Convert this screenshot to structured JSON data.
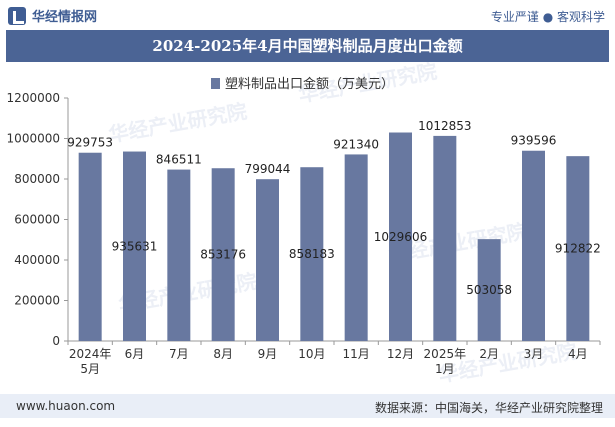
{
  "header": {
    "brand": "华经情报网",
    "tagline": "专业严谨 ● 客观科学"
  },
  "title": "2024-2025年4月中国塑料制品月度出口金额",
  "footer": {
    "url": "www.huaon.com",
    "source": "数据来源：中国海关，华经产业研究院整理"
  },
  "watermark": "华经产业研究院",
  "colors": {
    "bar": "#6878a0",
    "title_bg": "#4b6495",
    "footer_bg": "#e9eef7",
    "brand": "#3f5d93"
  },
  "chart_data": {
    "type": "bar",
    "categories": [
      [
        "2024年",
        "5月"
      ],
      [
        "6月"
      ],
      [
        "7月"
      ],
      [
        "8月"
      ],
      [
        "9月"
      ],
      [
        "10月"
      ],
      [
        "11月"
      ],
      [
        "12月"
      ],
      [
        "2025年",
        "1月"
      ],
      [
        "2月"
      ],
      [
        "3月"
      ],
      [
        "4月"
      ]
    ],
    "series": [
      {
        "name": "塑料制品出口金额（万美元）",
        "values": [
          929753,
          935631,
          846511,
          853176,
          799044,
          858183,
          921340,
          1029606,
          1012853,
          503058,
          939596,
          912822
        ]
      }
    ],
    "ylim": [
      0,
      1200000
    ],
    "yticks": [
      0,
      200000,
      400000,
      600000,
      800000,
      1000000,
      1200000
    ],
    "label_position": [
      "top",
      "inside",
      "top",
      "inside",
      "top",
      "inside",
      "top",
      "inside",
      "top",
      "inside",
      "top",
      "inside"
    ],
    "legend": "top-center",
    "grid": false
  }
}
